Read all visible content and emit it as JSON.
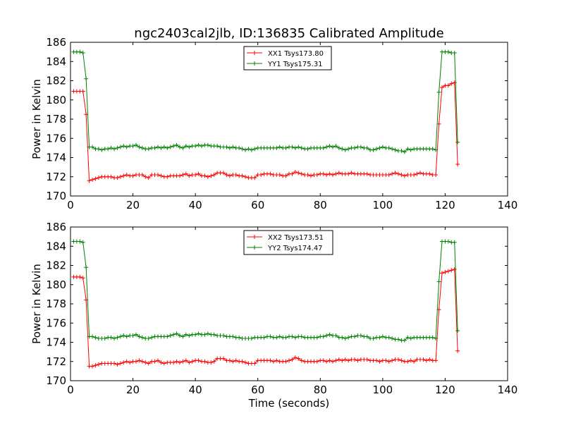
{
  "title": "ngc2403cal2jlb, ID:136835 Calibrated Amplitude",
  "chart_data": [
    {
      "type": "line",
      "xlabel": "",
      "ylabel": "Power in Kelvin",
      "xlim": [
        0,
        140
      ],
      "ylim": [
        170,
        186
      ],
      "xticks": [
        "0",
        "20",
        "40",
        "60",
        "80",
        "100",
        "120",
        "140"
      ],
      "yticks": [
        "170",
        "172",
        "174",
        "176",
        "178",
        "180",
        "182",
        "184",
        "186"
      ],
      "grid": false,
      "legend": "top-center",
      "series": [
        {
          "name": "XX1 Tsys173.80",
          "color": "#ff0000",
          "x": [
            1,
            2,
            3,
            4,
            5,
            6,
            7,
            8,
            9,
            10,
            11,
            12,
            13,
            14,
            15,
            16,
            17,
            18,
            19,
            20,
            21,
            22,
            23,
            24,
            25,
            26,
            27,
            28,
            29,
            30,
            31,
            32,
            33,
            34,
            35,
            36,
            37,
            38,
            39,
            40,
            41,
            42,
            43,
            44,
            45,
            46,
            47,
            48,
            49,
            50,
            51,
            52,
            53,
            54,
            55,
            56,
            57,
            58,
            59,
            60,
            61,
            62,
            63,
            64,
            65,
            66,
            67,
            68,
            69,
            70,
            71,
            72,
            73,
            74,
            75,
            76,
            77,
            78,
            79,
            80,
            81,
            82,
            83,
            84,
            85,
            86,
            87,
            88,
            89,
            90,
            91,
            92,
            93,
            94,
            95,
            96,
            97,
            98,
            99,
            100,
            101,
            102,
            103,
            104,
            105,
            106,
            107,
            108,
            109,
            110,
            111,
            112,
            113,
            114,
            115,
            116,
            117,
            118,
            119,
            120,
            121,
            122,
            123,
            124
          ],
          "values": [
            180.9,
            180.9,
            180.9,
            180.9,
            178.5,
            171.6,
            171.7,
            171.8,
            171.9,
            172.0,
            172.0,
            172.0,
            172.0,
            171.9,
            171.9,
            172.0,
            172.1,
            172.2,
            172.1,
            172.1,
            172.2,
            172.2,
            172.2,
            172.0,
            171.9,
            172.2,
            172.2,
            172.2,
            172.1,
            172.0,
            172.0,
            172.1,
            172.1,
            172.1,
            172.1,
            172.2,
            172.3,
            172.1,
            172.2,
            172.2,
            172.3,
            172.1,
            172.1,
            172.0,
            172.1,
            172.2,
            172.4,
            172.4,
            172.4,
            172.2,
            172.1,
            172.2,
            172.2,
            172.1,
            172.1,
            172.0,
            171.9,
            171.9,
            171.9,
            172.2,
            172.2,
            172.3,
            172.3,
            172.3,
            172.2,
            172.2,
            172.2,
            172.1,
            172.1,
            172.3,
            172.3,
            172.5,
            172.4,
            172.3,
            172.2,
            172.2,
            172.1,
            172.2,
            172.2,
            172.3,
            172.3,
            172.2,
            172.3,
            172.2,
            172.3,
            172.4,
            172.3,
            172.3,
            172.3,
            172.4,
            172.3,
            172.3,
            172.3,
            172.3,
            172.3,
            172.2,
            172.2,
            172.2,
            172.2,
            172.2,
            172.2,
            172.2,
            172.3,
            172.4,
            172.3,
            172.2,
            172.1,
            172.2,
            172.2,
            172.2,
            172.3,
            172.4,
            172.3,
            172.3,
            172.3,
            172.2,
            172.2,
            177.5,
            181.3,
            181.5,
            181.5,
            181.7,
            181.8,
            173.3
          ]
        },
        {
          "name": "YY1 Tsys175.31",
          "color": "#008000",
          "x": [
            1,
            2,
            3,
            4,
            5,
            6,
            7,
            8,
            9,
            10,
            11,
            12,
            13,
            14,
            15,
            16,
            17,
            18,
            19,
            20,
            21,
            22,
            23,
            24,
            25,
            26,
            27,
            28,
            29,
            30,
            31,
            32,
            33,
            34,
            35,
            36,
            37,
            38,
            39,
            40,
            41,
            42,
            43,
            44,
            45,
            46,
            47,
            48,
            49,
            50,
            51,
            52,
            53,
            54,
            55,
            56,
            57,
            58,
            59,
            60,
            61,
            62,
            63,
            64,
            65,
            66,
            67,
            68,
            69,
            70,
            71,
            72,
            73,
            74,
            75,
            76,
            77,
            78,
            79,
            80,
            81,
            82,
            83,
            84,
            85,
            86,
            87,
            88,
            89,
            90,
            91,
            92,
            93,
            94,
            95,
            96,
            97,
            98,
            99,
            100,
            101,
            102,
            103,
            104,
            105,
            106,
            107,
            108,
            109,
            110,
            111,
            112,
            113,
            114,
            115,
            116,
            117,
            118,
            119,
            120,
            121,
            122,
            123,
            124
          ],
          "values": [
            185.0,
            185.0,
            185.0,
            184.9,
            182.2,
            175.1,
            175.1,
            174.9,
            174.9,
            174.8,
            174.9,
            174.9,
            175.0,
            174.9,
            175.0,
            175.1,
            175.2,
            175.1,
            175.2,
            175.2,
            175.3,
            175.1,
            175.0,
            174.9,
            174.9,
            175.0,
            175.0,
            175.1,
            175.0,
            175.1,
            175.0,
            175.1,
            175.2,
            175.3,
            175.1,
            175.0,
            175.2,
            175.1,
            175.2,
            175.2,
            175.3,
            175.2,
            175.3,
            175.3,
            175.2,
            175.2,
            175.2,
            175.1,
            175.1,
            175.1,
            175.0,
            175.1,
            175.0,
            175.0,
            174.9,
            174.8,
            174.9,
            174.8,
            174.9,
            175.0,
            175.0,
            175.0,
            175.0,
            175.0,
            175.0,
            175.0,
            175.1,
            175.0,
            175.0,
            175.1,
            175.1,
            175.0,
            175.1,
            175.0,
            174.9,
            174.9,
            175.0,
            175.0,
            175.0,
            175.0,
            175.0,
            175.1,
            175.2,
            175.1,
            175.2,
            175.0,
            174.9,
            174.8,
            174.9,
            175.0,
            175.0,
            175.1,
            175.1,
            175.0,
            175.0,
            174.8,
            174.8,
            174.9,
            175.0,
            175.1,
            175.0,
            175.0,
            174.9,
            174.8,
            174.7,
            174.7,
            174.6,
            174.9,
            174.8,
            174.9,
            174.9,
            174.9,
            174.9,
            174.9,
            174.9,
            174.9,
            174.8,
            180.8,
            185.0,
            185.0,
            185.0,
            184.9,
            184.9,
            175.6
          ]
        }
      ]
    },
    {
      "type": "line",
      "xlabel": "Time (seconds)",
      "ylabel": "Power in Kelvin",
      "xlim": [
        0,
        140
      ],
      "ylim": [
        170,
        186
      ],
      "xticks": [
        "0",
        "20",
        "40",
        "60",
        "80",
        "100",
        "120",
        "140"
      ],
      "yticks": [
        "170",
        "172",
        "174",
        "176",
        "178",
        "180",
        "182",
        "184",
        "186"
      ],
      "grid": false,
      "legend": "top-center",
      "series": [
        {
          "name": "XX2 Tsys173.51",
          "color": "#ff0000",
          "x": [
            1,
            2,
            3,
            4,
            5,
            6,
            7,
            8,
            9,
            10,
            11,
            12,
            13,
            14,
            15,
            16,
            17,
            18,
            19,
            20,
            21,
            22,
            23,
            24,
            25,
            26,
            27,
            28,
            29,
            30,
            31,
            32,
            33,
            34,
            35,
            36,
            37,
            38,
            39,
            40,
            41,
            42,
            43,
            44,
            45,
            46,
            47,
            48,
            49,
            50,
            51,
            52,
            53,
            54,
            55,
            56,
            57,
            58,
            59,
            60,
            61,
            62,
            63,
            64,
            65,
            66,
            67,
            68,
            69,
            70,
            71,
            72,
            73,
            74,
            75,
            76,
            77,
            78,
            79,
            80,
            81,
            82,
            83,
            84,
            85,
            86,
            87,
            88,
            89,
            90,
            91,
            92,
            93,
            94,
            95,
            96,
            97,
            98,
            99,
            100,
            101,
            102,
            103,
            104,
            105,
            106,
            107,
            108,
            109,
            110,
            111,
            112,
            113,
            114,
            115,
            116,
            117,
            118,
            119,
            120,
            121,
            122,
            123,
            124
          ],
          "values": [
            180.8,
            180.8,
            180.8,
            180.7,
            178.4,
            171.5,
            171.5,
            171.6,
            171.7,
            171.8,
            171.8,
            171.8,
            171.8,
            171.8,
            171.7,
            171.8,
            171.9,
            172.0,
            171.9,
            172.0,
            172.0,
            172.1,
            172.0,
            171.9,
            171.8,
            172.0,
            172.0,
            172.1,
            171.9,
            171.8,
            171.9,
            171.9,
            171.9,
            172.0,
            171.9,
            172.0,
            172.1,
            171.9,
            172.0,
            172.1,
            172.1,
            172.0,
            172.0,
            171.9,
            171.9,
            172.0,
            172.3,
            172.3,
            172.3,
            172.1,
            172.1,
            172.0,
            172.1,
            172.0,
            172.0,
            171.9,
            171.8,
            171.8,
            171.8,
            172.1,
            172.1,
            172.1,
            172.1,
            172.1,
            172.0,
            172.1,
            172.0,
            172.0,
            172.0,
            172.1,
            172.2,
            172.4,
            172.3,
            172.1,
            172.0,
            172.0,
            172.0,
            172.0,
            172.0,
            172.1,
            172.1,
            172.0,
            172.1,
            172.0,
            172.1,
            172.2,
            172.1,
            172.2,
            172.1,
            172.2,
            172.2,
            172.1,
            172.2,
            172.2,
            172.2,
            172.1,
            172.1,
            172.1,
            172.0,
            172.1,
            172.1,
            172.0,
            172.1,
            172.2,
            172.2,
            172.1,
            172.0,
            172.0,
            172.1,
            172.0,
            172.2,
            172.2,
            172.2,
            172.1,
            172.2,
            172.1,
            172.1,
            177.4,
            181.2,
            181.3,
            181.4,
            181.5,
            181.6,
            173.1
          ]
        },
        {
          "name": "YY2 Tsys174.47",
          "color": "#008000",
          "x": [
            1,
            2,
            3,
            4,
            5,
            6,
            7,
            8,
            9,
            10,
            11,
            12,
            13,
            14,
            15,
            16,
            17,
            18,
            19,
            20,
            21,
            22,
            23,
            24,
            25,
            26,
            27,
            28,
            29,
            30,
            31,
            32,
            33,
            34,
            35,
            36,
            37,
            38,
            39,
            40,
            41,
            42,
            43,
            44,
            45,
            46,
            47,
            48,
            49,
            50,
            51,
            52,
            53,
            54,
            55,
            56,
            57,
            58,
            59,
            60,
            61,
            62,
            63,
            64,
            65,
            66,
            67,
            68,
            69,
            70,
            71,
            72,
            73,
            74,
            75,
            76,
            77,
            78,
            79,
            80,
            81,
            82,
            83,
            84,
            85,
            86,
            87,
            88,
            89,
            90,
            91,
            92,
            93,
            94,
            95,
            96,
            97,
            98,
            99,
            100,
            101,
            102,
            103,
            104,
            105,
            106,
            107,
            108,
            109,
            110,
            111,
            112,
            113,
            114,
            115,
            116,
            117,
            118,
            119,
            120,
            121,
            122,
            123,
            124
          ],
          "values": [
            184.5,
            184.5,
            184.5,
            184.4,
            181.8,
            174.6,
            174.6,
            174.5,
            174.4,
            174.4,
            174.4,
            174.5,
            174.5,
            174.4,
            174.5,
            174.6,
            174.7,
            174.6,
            174.7,
            174.7,
            174.8,
            174.6,
            174.5,
            174.4,
            174.4,
            174.5,
            174.6,
            174.6,
            174.6,
            174.6,
            174.6,
            174.7,
            174.8,
            174.9,
            174.7,
            174.6,
            174.8,
            174.7,
            174.8,
            174.8,
            174.9,
            174.8,
            174.8,
            174.9,
            174.8,
            174.8,
            174.7,
            174.7,
            174.7,
            174.6,
            174.6,
            174.6,
            174.5,
            174.5,
            174.4,
            174.4,
            174.4,
            174.4,
            174.5,
            174.5,
            174.5,
            174.5,
            174.6,
            174.6,
            174.5,
            174.5,
            174.6,
            174.5,
            174.5,
            174.6,
            174.6,
            174.5,
            174.6,
            174.6,
            174.5,
            174.5,
            174.5,
            174.5,
            174.5,
            174.6,
            174.6,
            174.7,
            174.8,
            174.7,
            174.7,
            174.5,
            174.5,
            174.4,
            174.5,
            174.6,
            174.6,
            174.7,
            174.7,
            174.6,
            174.6,
            174.4,
            174.4,
            174.5,
            174.5,
            174.6,
            174.5,
            174.5,
            174.4,
            174.3,
            174.3,
            174.2,
            174.2,
            174.5,
            174.4,
            174.5,
            174.5,
            174.5,
            174.5,
            174.5,
            174.5,
            174.5,
            174.4,
            180.3,
            184.5,
            184.5,
            184.5,
            184.4,
            184.4,
            175.2
          ]
        }
      ]
    }
  ]
}
